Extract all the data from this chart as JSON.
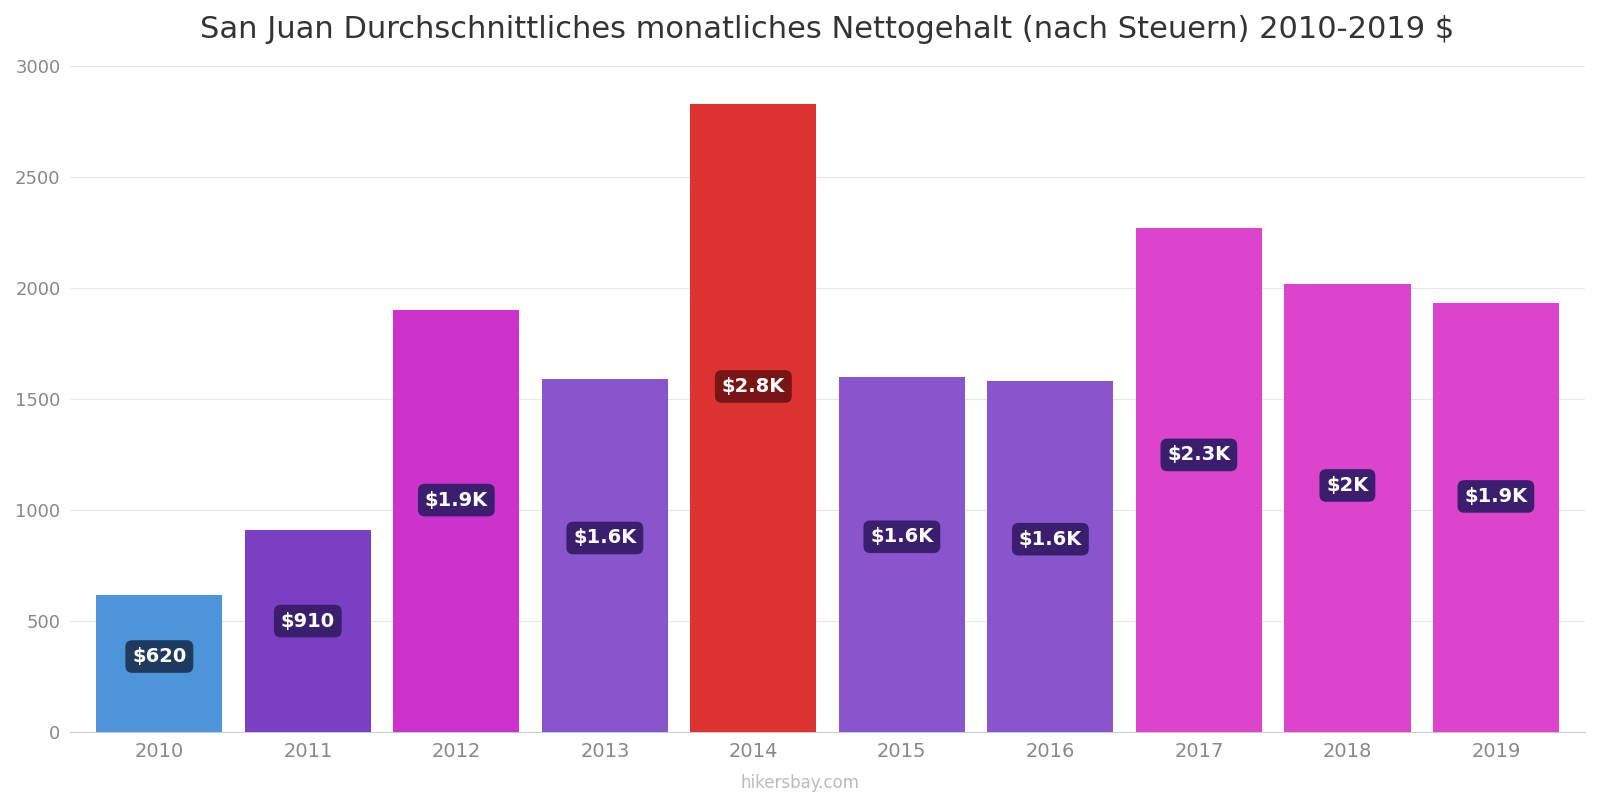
{
  "title": "San Juan Durchschnittliches monatliches Nettogehalt (nach Steuern) 2010-2019 $",
  "years": [
    2010,
    2011,
    2012,
    2013,
    2014,
    2015,
    2016,
    2017,
    2018,
    2019
  ],
  "values": [
    620,
    910,
    1900,
    1590,
    2830,
    1600,
    1580,
    2270,
    2020,
    1930
  ],
  "bar_colors": [
    "#4d94db",
    "#7b3fc4",
    "#cc33cc",
    "#8855cc",
    "#dc3232",
    "#8855cc",
    "#8855cc",
    "#dd44cc",
    "#dd44cc",
    "#dd44cc"
  ],
  "labels": [
    "$620",
    "$910",
    "$1.9K",
    "$1.6K",
    "$2.8K",
    "$1.6K",
    "$1.6K",
    "$2.3K",
    "$2K",
    "$1.9K"
  ],
  "label_bg_colors": [
    "#1e3a5f",
    "#3b1f6e",
    "#3b1f6e",
    "#3b1f6e",
    "#7a1515",
    "#3b1f6e",
    "#3b1f6e",
    "#3b1f6e",
    "#3b1f6e",
    "#3b1f6e"
  ],
  "ylim": [
    0,
    3000
  ],
  "yticks": [
    0,
    500,
    1000,
    1500,
    2000,
    2500,
    3000
  ],
  "background_color": "#ffffff",
  "title_fontsize": 22,
  "watermark": "hikersbay.com",
  "bar_width": 0.85
}
